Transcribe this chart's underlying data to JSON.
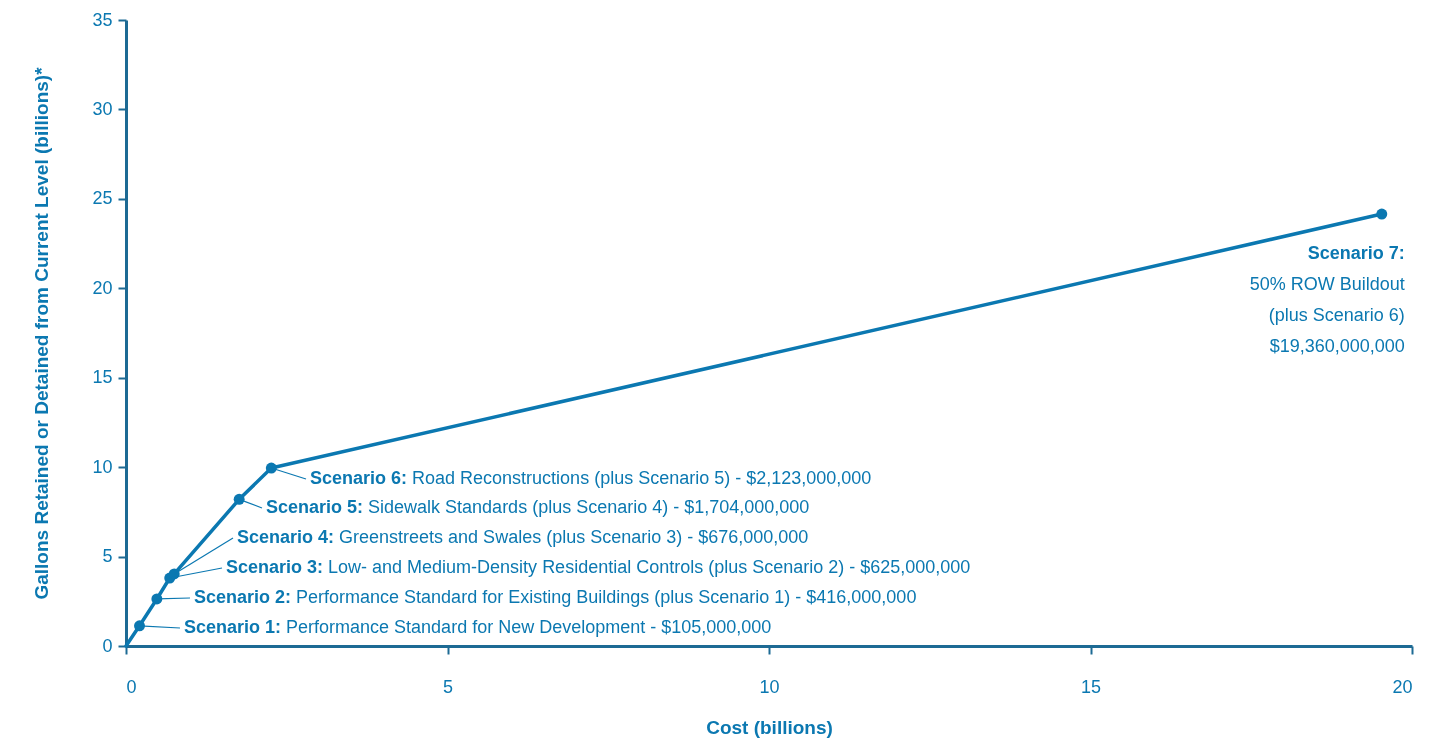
{
  "chart_data": {
    "type": "line",
    "xlabel": "Cost (billions)",
    "ylabel": "Gallons Retained or Detained from Current Level (billions)*",
    "xlim": [
      0,
      20
    ],
    "xticks": [
      0,
      5,
      10,
      15,
      20
    ],
    "ylim": [
      0,
      35
    ],
    "yticks": [
      0,
      5,
      10,
      15,
      20,
      25,
      30,
      35
    ],
    "grid": false,
    "series": [
      {
        "type": "line",
        "color": "#0b78b1",
        "x": [
          0,
          0.21,
          0.48,
          0.68,
          0.75,
          1.76,
          2.26,
          19.53
        ],
        "values": [
          0,
          1.13,
          2.63,
          3.8,
          4.03,
          8.2,
          9.95,
          24.15
        ]
      },
      {
        "type": "scatter",
        "color": "#0b78b1",
        "x": [
          0.21,
          0.48,
          0.68,
          0.75,
          1.76,
          2.26,
          19.53
        ],
        "values": [
          1.13,
          2.63,
          3.8,
          4.03,
          8.2,
          9.95,
          24.15
        ]
      }
    ],
    "annotations": [
      {
        "text": "Scenario 1: Performance Standard for New Development - $105,000,000",
        "x": 0.21,
        "y": 1.13
      },
      {
        "text": "Scenario 2: Performance Standard for Existing Buildings (plus Scenario 1) - $416,000,000",
        "x": 0.48,
        "y": 2.63
      },
      {
        "text": "Scenario 3: Low- and Medium-Density Residential Controls (plus Scenario 2) - $625,000,000",
        "x": 0.68,
        "y": 3.8
      },
      {
        "text": "Scenario 4: Greenstreets and Swales (plus Scenario 3) - $676,000,000",
        "x": 0.75,
        "y": 4.03
      },
      {
        "text": "Scenario 5: Sidewalk Standards (plus Scenario 4) - $1,704,000,000",
        "x": 1.76,
        "y": 8.2
      },
      {
        "text": "Scenario 6: Road Reconstructions (plus Scenario 5) - $2,123,000,000",
        "x": 2.26,
        "y": 9.95
      },
      {
        "text": "Scenario 7:\n50% ROW Buildout\n(plus Scenario 6)\n$19,360,000,000",
        "x": 19.53,
        "y": 24.15
      }
    ]
  }
}
